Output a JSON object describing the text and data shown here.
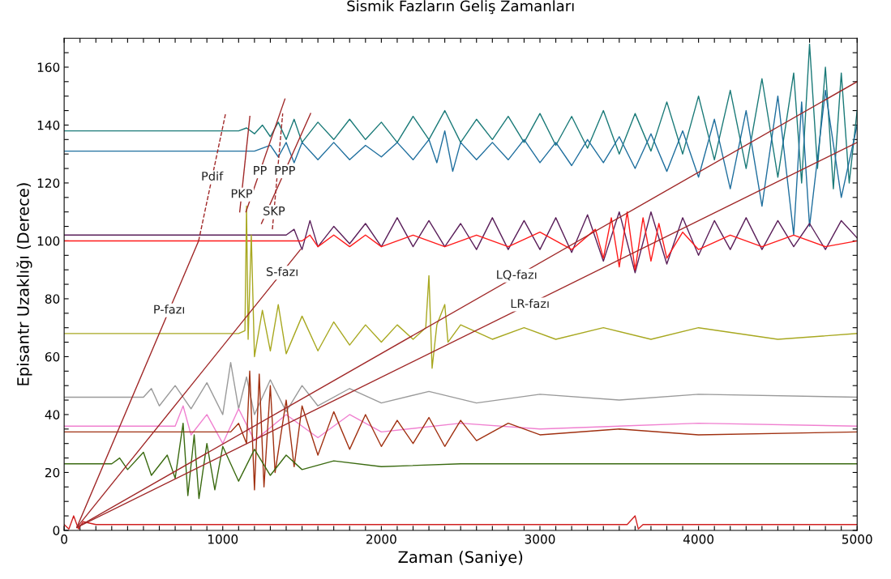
{
  "chart_data": {
    "type": "line",
    "title": "Sismik Fazların Geliş Zamanları",
    "xlabel": "Zaman (Saniye)",
    "ylabel": "Episantr Uzaklığı (Derece)",
    "xlim": [
      0,
      5000
    ],
    "ylim": [
      0,
      170
    ],
    "xticks": [
      0,
      {
        "value": 100,
        "label": null
      },
      {
        "value": 200,
        "label": null
      },
      {
        "value": 300,
        "label": null
      },
      {
        "value": 400,
        "label": null
      },
      {
        "value": 500,
        "label": null
      },
      {
        "value": 600,
        "label": null
      },
      {
        "value": 700,
        "label": null
      },
      {
        "value": 800,
        "label": null
      },
      {
        "value": 900,
        "label": null
      },
      1000,
      {
        "value": 1100,
        "label": null
      },
      {
        "value": 1200,
        "label": null
      },
      {
        "value": 1300,
        "label": null
      },
      {
        "value": 1400,
        "label": null
      },
      {
        "value": 1500,
        "label": null
      },
      {
        "value": 1600,
        "label": null
      },
      {
        "value": 1700,
        "label": null
      },
      {
        "value": 1800,
        "label": null
      },
      {
        "value": 1900,
        "label": null
      },
      2000,
      {
        "value": 2100,
        "label": null
      },
      {
        "value": 2200,
        "label": null
      },
      {
        "value": 2300,
        "label": null
      },
      {
        "value": 2400,
        "label": null
      },
      {
        "value": 2500,
        "label": null
      },
      {
        "value": 2600,
        "label": null
      },
      {
        "value": 2700,
        "label": null
      },
      {
        "value": 2800,
        "label": null
      },
      {
        "value": 2900,
        "label": null
      },
      3000,
      {
        "value": 3100,
        "label": null
      },
      {
        "value": 3200,
        "label": null
      },
      {
        "value": 3300,
        "label": null
      },
      {
        "value": 3400,
        "label": null
      },
      {
        "value": 3500,
        "label": null
      },
      {
        "value": 3600,
        "label": null
      },
      {
        "value": 3700,
        "label": null
      },
      {
        "value": 3800,
        "label": null
      },
      {
        "value": 3900,
        "label": null
      },
      4000,
      {
        "value": 4100,
        "label": null
      },
      {
        "value": 4200,
        "label": null
      },
      {
        "value": 4300,
        "label": null
      },
      {
        "value": 4400,
        "label": null
      },
      {
        "value": 4500,
        "label": null
      },
      {
        "value": 4600,
        "label": null
      },
      {
        "value": 4700,
        "label": null
      },
      {
        "value": 4800,
        "label": null
      },
      {
        "value": 4900,
        "label": null
      },
      5000
    ],
    "yticks": [
      0,
      {
        "value": 5,
        "label": null
      },
      {
        "value": 10,
        "label": null
      },
      {
        "value": 15,
        "label": null
      },
      20,
      {
        "value": 25,
        "label": null
      },
      {
        "value": 30,
        "label": null
      },
      {
        "value": 35,
        "label": null
      },
      40,
      {
        "value": 45,
        "label": null
      },
      {
        "value": 50,
        "label": null
      },
      {
        "value": 55,
        "label": null
      },
      60,
      {
        "value": 65,
        "label": null
      },
      {
        "value": 70,
        "label": null
      },
      {
        "value": 75,
        "label": null
      },
      80,
      {
        "value": 85,
        "label": null
      },
      {
        "value": 90,
        "label": null
      },
      {
        "value": 95,
        "label": null
      },
      100,
      {
        "value": 105,
        "label": null
      },
      {
        "value": 110,
        "label": null
      },
      {
        "value": 115,
        "label": null
      },
      120,
      {
        "value": 125,
        "label": null
      },
      {
        "value": 130,
        "label": null
      },
      {
        "value": 135,
        "label": null
      },
      140,
      {
        "value": 145,
        "label": null
      },
      {
        "value": 150,
        "label": null
      },
      {
        "value": 155,
        "label": null
      },
      160,
      {
        "value": 165,
        "label": null
      }
    ],
    "grid": false,
    "legend": false,
    "marker": "none",
    "line_style": "solid",
    "series": [
      {
        "color": "#1a7a78",
        "x": [
          0,
          1100,
          1150,
          1200,
          1250,
          1300,
          1350,
          1400,
          1450,
          1500,
          1600,
          1700,
          1800,
          1900,
          2000,
          2100,
          2200,
          2300,
          2400,
          2500,
          2600,
          2700,
          2800,
          2900,
          3000,
          3100,
          3200,
          3300,
          3400,
          3500,
          3600,
          3700,
          3800,
          3900,
          4000,
          4100,
          4200,
          4300,
          4400,
          4500,
          4600,
          4650,
          4700,
          4750,
          4800,
          4850,
          4900,
          4950,
          5000
        ],
        "values": [
          138,
          138,
          139,
          137,
          140,
          136,
          141,
          135,
          142,
          134,
          141,
          135,
          142,
          135,
          141,
          134,
          143,
          135,
          145,
          134,
          142,
          135,
          143,
          134,
          144,
          133,
          143,
          132,
          145,
          130,
          144,
          131,
          148,
          130,
          150,
          128,
          152,
          125,
          156,
          122,
          158,
          120,
          168,
          125,
          160,
          118,
          158,
          120,
          145
        ]
      },
      {
        "color": "#1f6f9e",
        "x": [
          0,
          1200,
          1300,
          1350,
          1400,
          1450,
          1500,
          1600,
          1700,
          1800,
          1900,
          2000,
          2100,
          2200,
          2300,
          2350,
          2400,
          2450,
          2500,
          2600,
          2700,
          2800,
          2900,
          3000,
          3100,
          3200,
          3300,
          3400,
          3500,
          3600,
          3700,
          3800,
          3900,
          4000,
          4100,
          4200,
          4300,
          4400,
          4500,
          4600,
          4650,
          4700,
          4800,
          4900,
          5000
        ],
        "values": [
          131,
          131,
          133,
          129,
          134,
          127,
          134,
          128,
          134,
          128,
          133,
          129,
          134,
          128,
          135,
          127,
          138,
          124,
          134,
          128,
          134,
          128,
          135,
          127,
          134,
          126,
          135,
          127,
          136,
          125,
          137,
          124,
          138,
          122,
          142,
          118,
          145,
          112,
          150,
          102,
          148,
          105,
          152,
          115,
          140
        ]
      },
      {
        "color": "#5a1f5a",
        "x": [
          0,
          1400,
          1450,
          1500,
          1550,
          1600,
          1700,
          1800,
          1900,
          2000,
          2100,
          2200,
          2300,
          2400,
          2500,
          2600,
          2700,
          2800,
          2900,
          3000,
          3100,
          3200,
          3300,
          3400,
          3500,
          3600,
          3700,
          3800,
          3900,
          4000,
          4100,
          4200,
          4300,
          4400,
          4500,
          4600,
          4700,
          4800,
          4900,
          5000
        ],
        "values": [
          102,
          102,
          104,
          97,
          107,
          98,
          105,
          99,
          106,
          98,
          108,
          98,
          107,
          98,
          106,
          97,
          108,
          97,
          107,
          97,
          108,
          96,
          109,
          93,
          110,
          89,
          110,
          92,
          108,
          95,
          107,
          97,
          108,
          97,
          107,
          98,
          106,
          97,
          107,
          101
        ]
      },
      {
        "color": "#ff1a1a",
        "x": [
          0,
          1500,
          1550,
          1600,
          1700,
          1800,
          1900,
          2000,
          2200,
          2400,
          2600,
          2800,
          3000,
          3200,
          3350,
          3400,
          3450,
          3500,
          3550,
          3600,
          3650,
          3700,
          3750,
          3800,
          3900,
          4000,
          4200,
          4400,
          4600,
          4800,
          5000
        ],
        "values": [
          100,
          100,
          102,
          98,
          102,
          98,
          102,
          98,
          102,
          98,
          102,
          98,
          103,
          97,
          104,
          94,
          108,
          91,
          110,
          90,
          108,
          93,
          106,
          94,
          103,
          97,
          102,
          98,
          102,
          98,
          100
        ]
      },
      {
        "color": "#a8a820",
        "x": [
          0,
          1100,
          1140,
          1150,
          1160,
          1180,
          1200,
          1250,
          1300,
          1350,
          1400,
          1500,
          1600,
          1700,
          1800,
          1900,
          2000,
          2100,
          2200,
          2280,
          2300,
          2320,
          2350,
          2400,
          2420,
          2500,
          2700,
          2900,
          3100,
          3400,
          3700,
          4000,
          4500,
          5000
        ],
        "values": [
          68,
          68,
          69,
          112,
          66,
          102,
          60,
          76,
          62,
          78,
          61,
          74,
          62,
          72,
          64,
          71,
          65,
          71,
          66,
          70,
          88,
          56,
          71,
          78,
          65,
          71,
          66,
          70,
          66,
          70,
          66,
          70,
          66,
          68
        ]
      },
      {
        "color": "#9a9a9a",
        "x": [
          0,
          500,
          550,
          600,
          700,
          800,
          900,
          1000,
          1050,
          1100,
          1150,
          1200,
          1300,
          1400,
          1500,
          1600,
          1800,
          2000,
          2300,
          2600,
          3000,
          3500,
          4000,
          5000
        ],
        "values": [
          46,
          46,
          49,
          43,
          50,
          42,
          51,
          40,
          58,
          42,
          53,
          40,
          52,
          41,
          50,
          43,
          49,
          44,
          48,
          44,
          47,
          45,
          47,
          46
        ]
      },
      {
        "color": "#f080d0",
        "x": [
          0,
          700,
          750,
          800,
          900,
          1000,
          1100,
          1200,
          1400,
          1600,
          1800,
          2000,
          2500,
          3000,
          4000,
          5000
        ],
        "values": [
          36,
          36,
          43,
          33,
          40,
          30,
          42,
          31,
          40,
          32,
          40,
          34,
          37,
          35,
          37,
          36
        ]
      },
      {
        "color": "#a03010",
        "x": [
          0,
          1050,
          1100,
          1150,
          1170,
          1200,
          1230,
          1260,
          1300,
          1330,
          1400,
          1450,
          1500,
          1600,
          1700,
          1800,
          1900,
          2000,
          2100,
          2200,
          2300,
          2400,
          2500,
          2600,
          2800,
          3000,
          3500,
          4000,
          5000
        ],
        "values": [
          34,
          34,
          37,
          30,
          55,
          14,
          54,
          15,
          50,
          20,
          45,
          22,
          43,
          26,
          41,
          28,
          40,
          29,
          38,
          30,
          39,
          29,
          38,
          31,
          37,
          33,
          35,
          33,
          34
        ]
      },
      {
        "color": "#3a6a10",
        "x": [
          0,
          300,
          350,
          400,
          500,
          550,
          650,
          700,
          750,
          780,
          820,
          850,
          900,
          950,
          1000,
          1100,
          1200,
          1300,
          1400,
          1500,
          1700,
          2000,
          2500,
          5000
        ],
        "values": [
          23,
          23,
          25,
          21,
          27,
          19,
          26,
          18,
          37,
          12,
          33,
          11,
          30,
          14,
          29,
          17,
          28,
          19,
          26,
          21,
          24,
          22,
          23,
          23
        ]
      },
      {
        "color": "#d02020",
        "x": [
          0,
          30,
          60,
          90,
          120,
          200,
          1000,
          2000,
          3550,
          3600,
          3620,
          3650,
          5000
        ],
        "values": [
          2,
          0.5,
          5,
          0.5,
          3,
          2,
          2,
          2,
          2,
          5,
          0.5,
          2,
          2
        ]
      },
      {
        "color": "#a02828",
        "x": [
          80,
          848
        ],
        "values": [
          1,
          100
        ]
      },
      {
        "color": "#a02828",
        "x": [
          848,
          1018
        ],
        "values": [
          100,
          144
        ],
        "line_style": "dashed"
      },
      {
        "color": "#a02828",
        "x": [
          1107,
          1171
        ],
        "values": [
          110,
          143
        ]
      },
      {
        "color": "#a02828",
        "x": [
          1146,
          1392
        ],
        "values": [
          110,
          149
        ]
      },
      {
        "color": "#a02828",
        "x": [
          1244,
          1554
        ],
        "values": [
          106,
          144
        ]
      },
      {
        "color": "#a02828",
        "x": [
          1313,
          1378
        ],
        "values": [
          104,
          144
        ],
        "line_style": "dashed"
      },
      {
        "color": "#a02828",
        "x": [
          80,
          1490
        ],
        "values": [
          1,
          97
        ]
      },
      {
        "color": "#a02828",
        "x": [
          80,
          5000
        ],
        "values": [
          1,
          155
        ]
      },
      {
        "color": "#a02828",
        "x": [
          80,
          5000
        ],
        "values": [
          1,
          134
        ]
      }
    ],
    "annotations": [
      {
        "text": "P-fazı",
        "x": 662,
        "y": 76
      },
      {
        "text": "Pdif",
        "x": 933,
        "y": 122
      },
      {
        "text": "PKP",
        "x": 1119,
        "y": 116
      },
      {
        "text": "PP",
        "x": 1234,
        "y": 124
      },
      {
        "text": "PPP",
        "x": 1391,
        "y": 124
      },
      {
        "text": "SKP",
        "x": 1323,
        "y": 110
      },
      {
        "text": "S-fazı",
        "x": 1375,
        "y": 89
      },
      {
        "text": "LQ-fazı",
        "x": 2853,
        "y": 88
      },
      {
        "text": "LR-fazı",
        "x": 2937,
        "y": 78
      }
    ]
  }
}
